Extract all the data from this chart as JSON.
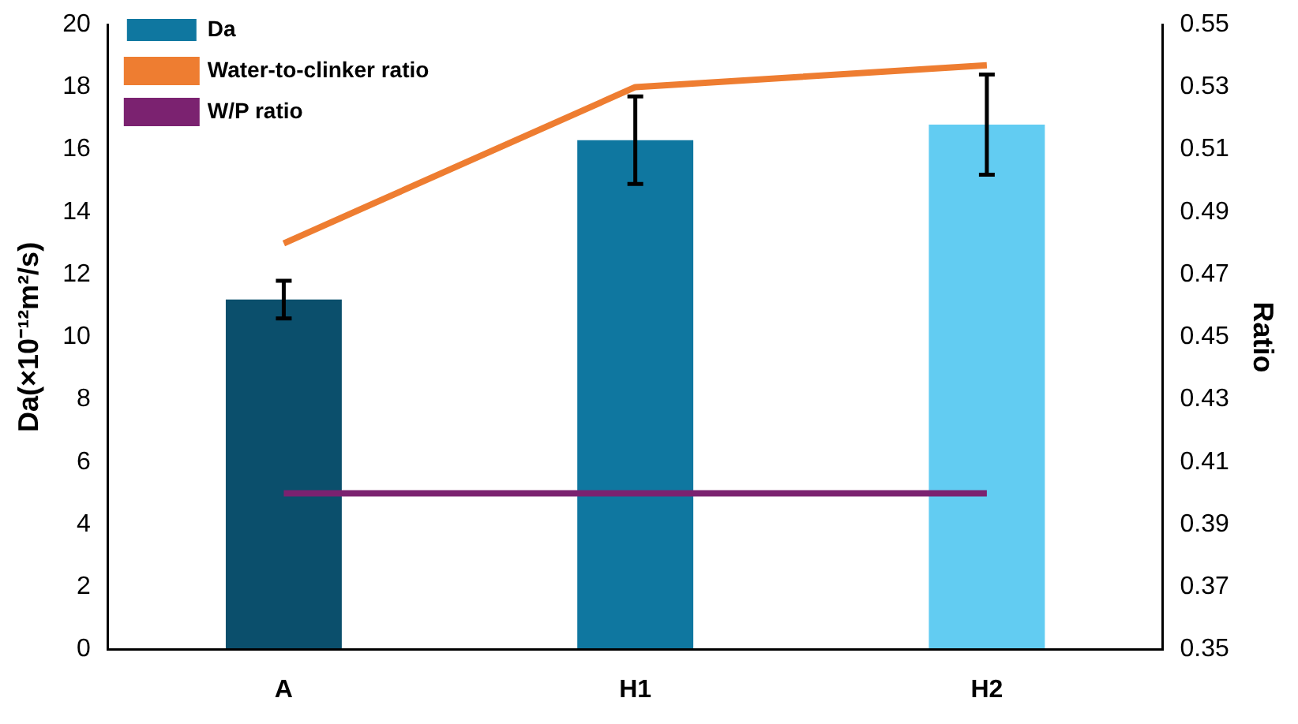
{
  "chart_data": {
    "type": "bar",
    "ylabel": "Da(×10⁻¹²m²/s)",
    "y2label": "Ratio",
    "categories": [
      "A",
      "H1",
      "H2"
    ],
    "series": [
      {
        "name": "Da",
        "color": "#0f77a0",
        "colors": [
          "#0b4f6c",
          "#0f77a0",
          "#62ccf2"
        ],
        "values": [
          11.2,
          16.3,
          16.8
        ],
        "errors": [
          [
            10.6,
            11.8
          ],
          [
            14.9,
            17.7
          ],
          [
            15.2,
            18.4
          ]
        ]
      },
      {
        "name": "Water-to-clinker ratio",
        "type": "line",
        "axis": "y2",
        "color": "#ee7d31",
        "values": [
          0.48,
          0.53,
          0.537
        ]
      },
      {
        "name": "W/P ratio",
        "type": "line",
        "axis": "y2",
        "color": "#7b2270",
        "values": [
          0.4,
          0.4,
          0.4
        ]
      }
    ],
    "ylim": [
      0,
      20
    ],
    "yticks": [
      0,
      2,
      4,
      6,
      8,
      10,
      12,
      14,
      16,
      18,
      20
    ],
    "y2lim": [
      0.35,
      0.55
    ],
    "y2ticks": [
      0.35,
      0.37,
      0.39,
      0.41,
      0.43,
      0.45,
      0.47,
      0.49,
      0.51,
      0.53,
      0.55
    ],
    "legend": "top left",
    "grid": false,
    "marker": "none",
    "line_style": "solid"
  }
}
